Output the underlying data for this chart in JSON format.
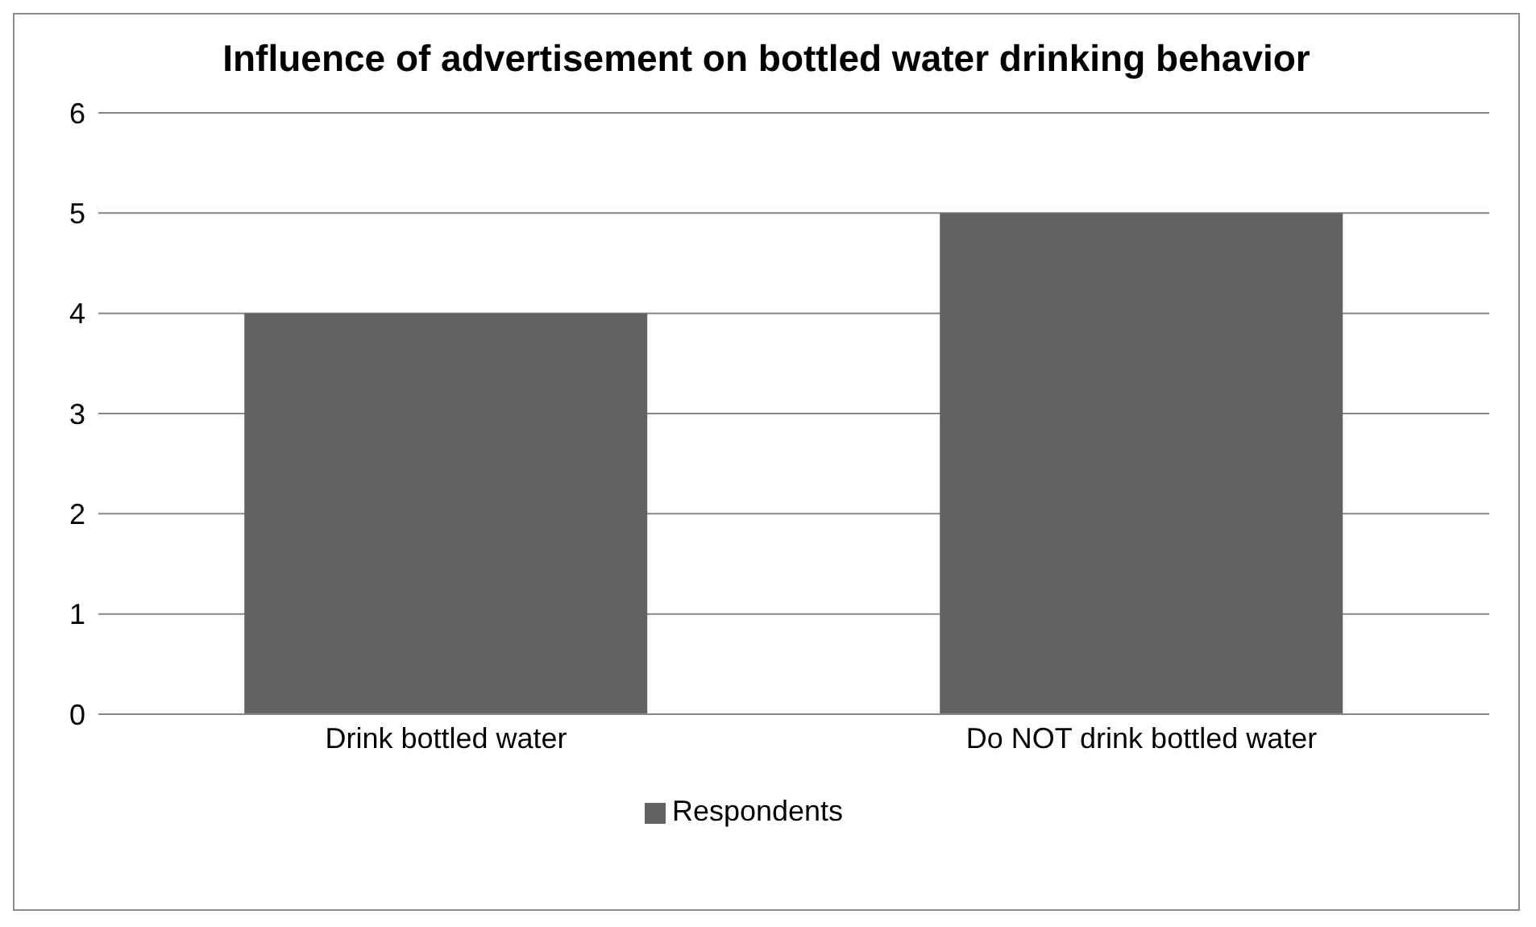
{
  "chart_data": {
    "type": "bar",
    "title": "Influence of advertisement on bottled water drinking behavior",
    "categories": [
      "Drink bottled water",
      "Do NOT drink bottled water"
    ],
    "series": [
      {
        "name": "Respondents",
        "color": "#636363",
        "values": [
          4,
          5
        ]
      }
    ],
    "ylim": [
      0,
      6
    ],
    "yticks": [
      0,
      1,
      2,
      3,
      4,
      5,
      6
    ],
    "grid": "y",
    "legend": "bottom"
  }
}
